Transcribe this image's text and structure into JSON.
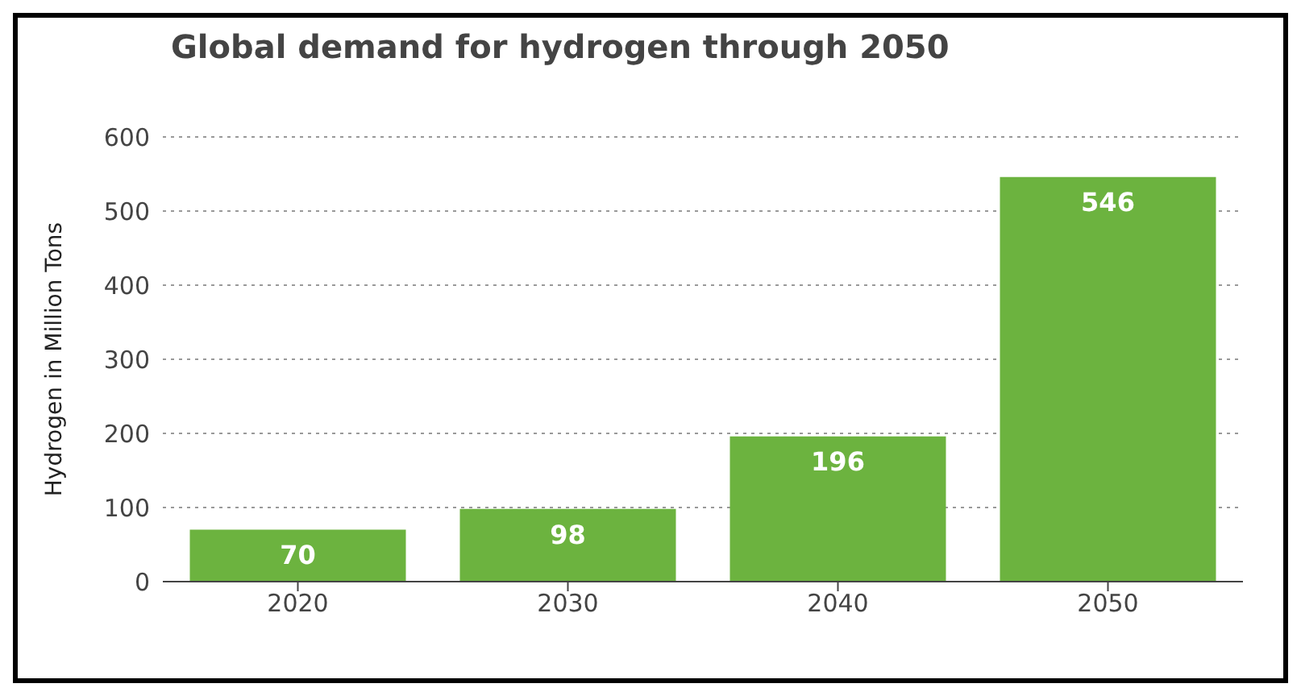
{
  "chart_data": {
    "type": "bar",
    "title": "Global demand for hydrogen through 2050",
    "ylabel": "Hydrogen in Million Tons",
    "categories": [
      "2020",
      "2030",
      "2040",
      "2050"
    ],
    "values": [
      70,
      98,
      196,
      546
    ],
    "color": "#6cb33f",
    "ylim": [
      0,
      600
    ],
    "yticks": [
      0,
      100,
      200,
      300,
      400,
      500,
      600
    ],
    "grid": "y",
    "data_labels": true
  }
}
